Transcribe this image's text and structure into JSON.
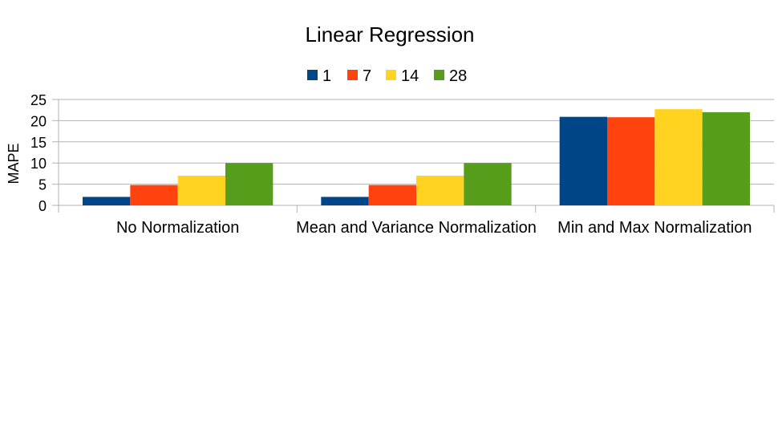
{
  "chart_data": {
    "type": "bar",
    "title": "Linear Regression",
    "xlabel": "",
    "ylabel": "MAPE",
    "categories": [
      "No Normalization",
      "Mean and Variance Normalization",
      "Min and Max Normalization"
    ],
    "series": [
      {
        "name": "1",
        "values": [
          2.0,
          2.0,
          20.9
        ],
        "color": "#004586"
      },
      {
        "name": "7",
        "values": [
          4.8,
          4.8,
          20.8
        ],
        "color": "#ff420e"
      },
      {
        "name": "14",
        "values": [
          7.0,
          7.0,
          22.7
        ],
        "color": "#ffd320"
      },
      {
        "name": "28",
        "values": [
          10.0,
          10.0,
          22.0
        ],
        "color": "#579d1c"
      }
    ],
    "ylim": [
      0,
      25
    ],
    "yticks": [
      0,
      5,
      10,
      15,
      20,
      25
    ],
    "grid": true,
    "legend_position": "top"
  }
}
